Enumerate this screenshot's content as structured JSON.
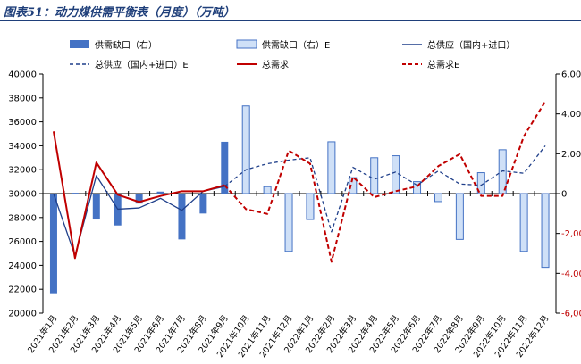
{
  "title": "图表51：动力煤供需平衡表（月度）（万吨）",
  "colors": {
    "gap_fill": "#4472c4",
    "gap_e_fill": "#cfe0f7",
    "gap_e_stroke": "#4472c4",
    "supply": "#1f3f8a",
    "demand": "#c00000",
    "title": "#1f3f7a"
  },
  "chart_data": {
    "type": "bar+line",
    "categories": [
      "2021年1月",
      "2021年2月",
      "2021年3月",
      "2021年4月",
      "2021年5月",
      "2021年6月",
      "2021年7月",
      "2021年8月",
      "2021年9月",
      "2021年10月",
      "2021年11月",
      "2021年12月",
      "2022年1月",
      "2022年2月",
      "2022年3月",
      "2022年4月",
      "2022年5月",
      "2022年6月",
      "2022年7月",
      "2022年8月",
      "2022年9月",
      "2022年10月",
      "2022年11月",
      "2022年12月"
    ],
    "y_left": {
      "min": 20000,
      "max": 40000,
      "step": 2000,
      "ticks": [
        "20000",
        "22000",
        "24000",
        "26000",
        "28000",
        "30000",
        "32000",
        "34000",
        "36000",
        "38000",
        "40000"
      ]
    },
    "y_right": {
      "min": -6000,
      "max": 6000,
      "step": 2000,
      "ticks": [
        "-6,000",
        "-4,000",
        "-2,000",
        "0",
        "2,000",
        "4,000",
        "6,000"
      ]
    },
    "series": [
      {
        "name": "供需缺口（右）",
        "kind": "bar",
        "axis": "right",
        "values": [
          -5000,
          40,
          -1300,
          -1600,
          -500,
          100,
          -2300,
          -1000,
          2600,
          null,
          null,
          null,
          null,
          null,
          null,
          null,
          null,
          null,
          null,
          null,
          null,
          null,
          null,
          null
        ]
      },
      {
        "name": "供需缺口（右）E",
        "kind": "bar-estimate",
        "axis": "right",
        "values": [
          null,
          null,
          null,
          null,
          null,
          null,
          null,
          null,
          null,
          4400,
          350,
          -2900,
          -1300,
          2600,
          800,
          1800,
          1900,
          600,
          -400,
          -2300,
          1050,
          2200,
          -2900,
          -3700
        ]
      },
      {
        "name": "总供应（国内+进口）",
        "kind": "line",
        "axis": "left",
        "values": [
          30000,
          24800,
          31500,
          28700,
          28800,
          29600,
          28600,
          30200,
          30600,
          null,
          null,
          null,
          null,
          null,
          null,
          null,
          null,
          null,
          null,
          null,
          null,
          null,
          null,
          null
        ]
      },
      {
        "name": "总供应（国内+进口）E",
        "kind": "line-dashed",
        "axis": "left",
        "values": [
          null,
          null,
          null,
          null,
          null,
          null,
          null,
          null,
          30600,
          32000,
          32500,
          32800,
          33000,
          26800,
          32200,
          31200,
          31800,
          30700,
          31900,
          30800,
          30700,
          31900,
          31700,
          34000
        ]
      },
      {
        "name": "总需求",
        "kind": "line",
        "axis": "left",
        "values": [
          35200,
          24600,
          32600,
          29900,
          29300,
          29800,
          30200,
          30200,
          30700,
          null,
          null,
          null,
          null,
          null,
          null,
          null,
          null,
          null,
          null,
          null,
          null,
          null,
          null,
          null
        ]
      },
      {
        "name": "总需求E",
        "kind": "line-dashed",
        "axis": "left",
        "values": [
          null,
          null,
          null,
          null,
          null,
          null,
          null,
          null,
          30700,
          28700,
          28300,
          33600,
          32500,
          24300,
          31400,
          29700,
          30200,
          30600,
          32300,
          33300,
          29800,
          29800,
          34800,
          37700
        ]
      }
    ]
  }
}
